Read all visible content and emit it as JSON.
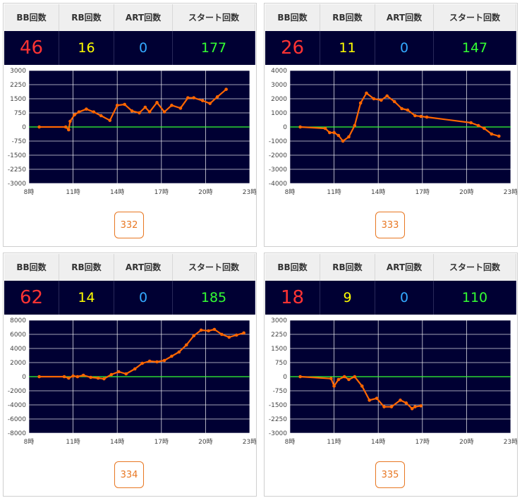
{
  "headers": {
    "bb": "BB回数",
    "rb": "RB回数",
    "art": "ART回数",
    "start": "スタート回数"
  },
  "colors": {
    "bb": "#ff3333",
    "rb": "#ffff00",
    "art": "#33a9ff",
    "start": "#33ff33",
    "line": "#ff6600",
    "zero": "#33ff33",
    "plot_bg": "#000033"
  },
  "machines": [
    {
      "bb": "46",
      "rb": "16",
      "art": "0",
      "start": "177",
      "machine_no": "332"
    },
    {
      "bb": "26",
      "rb": "11",
      "art": "0",
      "start": "147",
      "machine_no": "333"
    },
    {
      "bb": "62",
      "rb": "14",
      "art": "0",
      "start": "185",
      "machine_no": "334"
    },
    {
      "bb": "18",
      "rb": "9",
      "art": "0",
      "start": "110",
      "machine_no": "335"
    }
  ],
  "chart_data": [
    {
      "type": "line",
      "x_ticks": [
        "8時",
        "11時",
        "14時",
        "17時",
        "20時",
        "23時"
      ],
      "xlim": [
        8,
        23
      ],
      "y_ticks": [
        "3000",
        "2250",
        "1500",
        "750",
        "0",
        "-750",
        "-1500",
        "-2250",
        "-3000"
      ],
      "ylim": [
        -3000,
        3000
      ],
      "series": [
        {
          "x": [
            8.7,
            10.5,
            10.7,
            10.8,
            11.1,
            11.4,
            11.9,
            12.4,
            12.9,
            13.5,
            14.0,
            14.5,
            15.0,
            15.5,
            15.9,
            16.2,
            16.7,
            17.2,
            17.7,
            18.3,
            18.8,
            19.2,
            19.8,
            20.3,
            20.8,
            21.4
          ],
          "y": [
            0,
            0,
            -150,
            300,
            650,
            800,
            950,
            800,
            600,
            350,
            1150,
            1200,
            850,
            750,
            1050,
            800,
            1300,
            800,
            1150,
            1000,
            1550,
            1550,
            1400,
            1250,
            1600,
            2000
          ]
        }
      ]
    },
    {
      "type": "line",
      "x_ticks": [
        "8時",
        "11時",
        "14時",
        "17時",
        "20時",
        "23時"
      ],
      "xlim": [
        8,
        23
      ],
      "y_ticks": [
        "4000",
        "3000",
        "2000",
        "1000",
        "0",
        "-1000",
        "-2000",
        "-3000",
        "-4000"
      ],
      "ylim": [
        -4000,
        4000
      ],
      "series": [
        {
          "x": [
            8.7,
            10.4,
            10.7,
            11.0,
            11.3,
            11.6,
            12.0,
            12.4,
            12.8,
            13.2,
            13.7,
            14.2,
            14.6,
            15.1,
            15.6,
            16.0,
            16.5,
            16.9,
            17.3,
            20.3,
            20.8,
            21.2,
            21.7,
            22.2
          ],
          "y": [
            0,
            -100,
            -400,
            -400,
            -600,
            -1000,
            -700,
            100,
            1700,
            2400,
            2000,
            1900,
            2200,
            1800,
            1300,
            1200,
            800,
            750,
            700,
            300,
            100,
            -100,
            -500,
            -650
          ]
        }
      ]
    },
    {
      "type": "line",
      "x_ticks": [
        "8時",
        "11時",
        "14時",
        "17時",
        "20時",
        "23時"
      ],
      "xlim": [
        8,
        23
      ],
      "y_ticks": [
        "8000",
        "6000",
        "4000",
        "2000",
        "0",
        "-2000",
        "-4000",
        "-6000",
        "-8000"
      ],
      "ylim": [
        -8000,
        8000
      ],
      "series": [
        {
          "x": [
            8.7,
            10.4,
            10.7,
            11.0,
            11.3,
            11.7,
            12.2,
            12.7,
            13.1,
            13.6,
            14.1,
            14.6,
            15.2,
            15.7,
            16.2,
            16.7,
            17.2,
            17.7,
            18.2,
            18.7,
            19.2,
            19.7,
            20.2,
            20.6,
            21.1,
            21.6,
            22.1,
            22.6
          ],
          "y": [
            0,
            0,
            -200,
            100,
            0,
            200,
            -100,
            -200,
            -300,
            300,
            700,
            400,
            1100,
            1900,
            2200,
            2100,
            2300,
            2900,
            3500,
            4500,
            5800,
            6600,
            6500,
            6700,
            6000,
            5600,
            5900,
            6200
          ]
        }
      ]
    },
    {
      "type": "line",
      "x_ticks": [
        "8時",
        "11時",
        "14時",
        "17時",
        "20時",
        "23時"
      ],
      "xlim": [
        8,
        23
      ],
      "y_ticks": [
        "3000",
        "2250",
        "1500",
        "750",
        "0",
        "-750",
        "-1500",
        "-2250",
        "-3000"
      ],
      "ylim": [
        -3000,
        3000
      ],
      "series": [
        {
          "x": [
            8.7,
            10.8,
            11.0,
            11.3,
            11.7,
            12.0,
            12.4,
            12.9,
            13.4,
            13.9,
            14.4,
            14.9,
            15.5,
            15.9,
            16.3,
            16.5,
            16.9
          ],
          "y": [
            0,
            -100,
            -500,
            -150,
            0,
            -150,
            0,
            -500,
            -1250,
            -1150,
            -1600,
            -1600,
            -1250,
            -1400,
            -1700,
            -1600,
            -1550
          ]
        }
      ]
    }
  ]
}
